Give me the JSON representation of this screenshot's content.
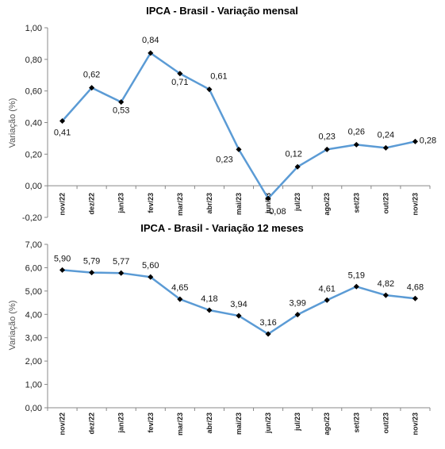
{
  "chart_data": [
    {
      "type": "line",
      "title": "IPCA - Brasil - Variação mensal",
      "xlabel": "",
      "ylabel": "Variação (%)",
      "categories": [
        "nov/22",
        "dez/22",
        "jan/23",
        "fev/23",
        "mar/23",
        "abr/23",
        "mai/23",
        "jun/23",
        "jul/23",
        "ago/23",
        "set/23",
        "out/23",
        "nov/23"
      ],
      "values": [
        0.41,
        0.62,
        0.53,
        0.84,
        0.71,
        0.61,
        0.23,
        -0.08,
        0.12,
        0.23,
        0.26,
        0.24,
        0.28
      ],
      "value_labels": [
        "0,41",
        "0,62",
        "0,53",
        "0,84",
        "0,71",
        "0,61",
        "0,23",
        "-0,08",
        "0,12",
        "0,23",
        "0,26",
        "0,24",
        "0,28"
      ],
      "yticks": [
        -0.2,
        0,
        0.2,
        0.4,
        0.6,
        0.8,
        1.0
      ],
      "ytick_labels": [
        "-0,20",
        "0,00",
        "0,20",
        "0,40",
        "0,60",
        "0,80",
        "1,00"
      ],
      "ylim": [
        -0.2,
        1.0
      ],
      "grid": false,
      "line_color": "#5b9bd5",
      "marker_color": "#000000"
    },
    {
      "type": "line",
      "title": "IPCA - Brasil - Variação 12 meses",
      "xlabel": "",
      "ylabel": "Variação (%)",
      "categories": [
        "nov/22",
        "dez/22",
        "jan/23",
        "fev/23",
        "mar/23",
        "abr/23",
        "mai/23",
        "jun/23",
        "jul/23",
        "ago/23",
        "set/23",
        "out/23",
        "nov/23"
      ],
      "values": [
        5.9,
        5.79,
        5.77,
        5.6,
        4.65,
        4.18,
        3.94,
        3.16,
        3.99,
        4.61,
        5.19,
        4.82,
        4.68
      ],
      "value_labels": [
        "5,90",
        "5,79",
        "5,77",
        "5,60",
        "4,65",
        "4,18",
        "3,94",
        "3,16",
        "3,99",
        "4,61",
        "5,19",
        "4,82",
        "4,68"
      ],
      "yticks": [
        0,
        1,
        2,
        3,
        4,
        5,
        6,
        7
      ],
      "ytick_labels": [
        "0,00",
        "1,00",
        "2,00",
        "3,00",
        "4,00",
        "5,00",
        "6,00",
        "7,00"
      ],
      "ylim": [
        0,
        7
      ],
      "grid": false,
      "line_color": "#5b9bd5",
      "marker_color": "#000000"
    }
  ]
}
